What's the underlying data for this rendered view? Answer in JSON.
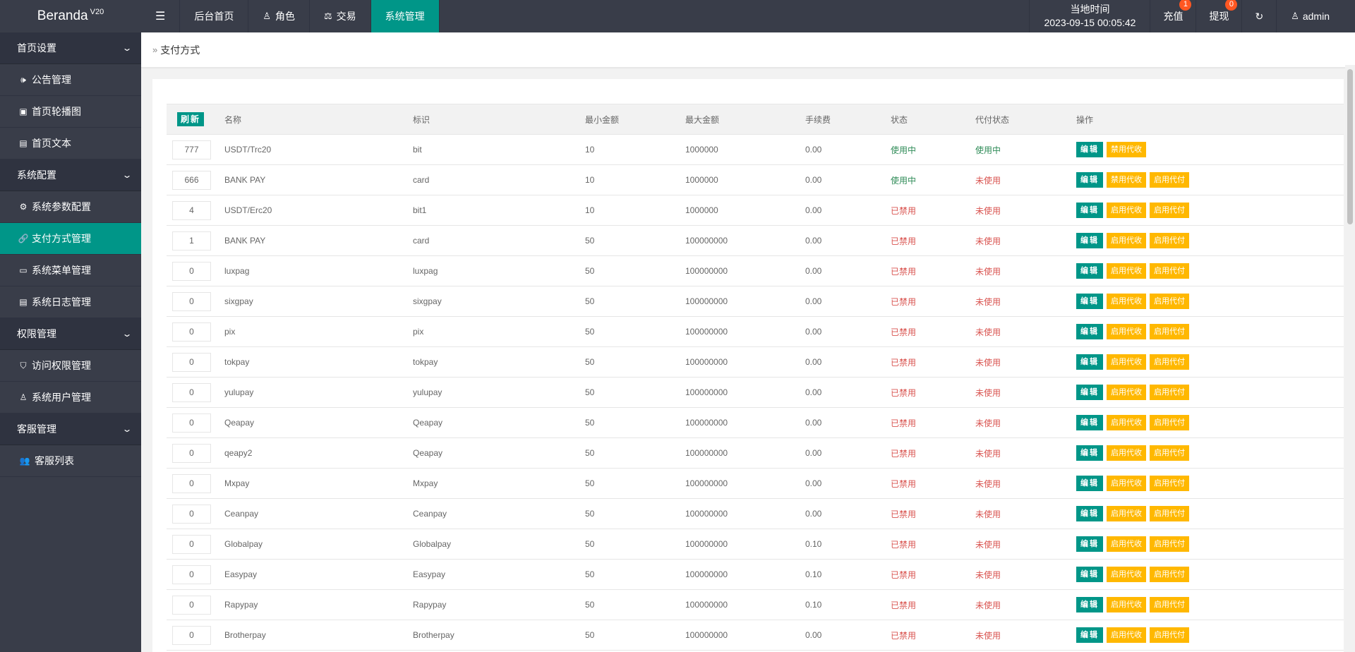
{
  "app": {
    "logo": "Beranda",
    "version": "V20"
  },
  "topnav": {
    "menu_icon": "hamburger-icon",
    "items": [
      {
        "label": "后台首页",
        "icon": ""
      },
      {
        "label": "角色",
        "icon": "user-icon"
      },
      {
        "label": "交易",
        "icon": "scale-icon"
      },
      {
        "label": "系统管理",
        "icon": "",
        "active": true
      }
    ]
  },
  "topright": {
    "time_label": "当地时间",
    "time_value": "2023-09-15 00:05:42",
    "recharge": {
      "label": "充值",
      "badge": "1"
    },
    "withdraw": {
      "label": "提现",
      "badge": "0"
    },
    "refresh_icon": "refresh-icon",
    "user": "admin"
  },
  "sidebar": {
    "groups": [
      {
        "title": "首页设置",
        "items": [
          {
            "label": "公告管理",
            "icon": "speaker-icon"
          },
          {
            "label": "首页轮播图",
            "icon": "image-icon"
          },
          {
            "label": "首页文本",
            "icon": "document-icon"
          }
        ]
      },
      {
        "title": "系统配置",
        "items": [
          {
            "label": "系统参数配置",
            "icon": "gear-icon"
          },
          {
            "label": "支付方式管理",
            "icon": "link-icon",
            "active": true
          },
          {
            "label": "系统菜单管理",
            "icon": "window-icon"
          },
          {
            "label": "系统日志管理",
            "icon": "log-icon"
          }
        ]
      },
      {
        "title": "权限管理",
        "items": [
          {
            "label": "访问权限管理",
            "icon": "shield-icon"
          },
          {
            "label": "系统用户管理",
            "icon": "user-icon"
          }
        ]
      },
      {
        "title": "客服管理",
        "items": [
          {
            "label": "客服列表",
            "icon": "users-icon"
          }
        ]
      }
    ]
  },
  "breadcrumb": "支付方式",
  "table": {
    "refresh_label": "刷新",
    "headers": [
      "名称",
      "标识",
      "最小金额",
      "最大金额",
      "手续费",
      "状态",
      "代付状态",
      "操作"
    ],
    "edit_label": "编辑",
    "rows": [
      {
        "sort": "777",
        "name": "USDT/Trc20",
        "code": "bit",
        "min": "10",
        "max": "1000000",
        "fee": "0.00",
        "status": "使用中",
        "status_on": true,
        "pay_status": "使用中",
        "pay_on": true,
        "actions": [
          "禁用代收"
        ]
      },
      {
        "sort": "666",
        "name": "BANK PAY",
        "code": "card",
        "min": "10",
        "max": "1000000",
        "fee": "0.00",
        "status": "使用中",
        "status_on": true,
        "pay_status": "未使用",
        "pay_on": false,
        "actions": [
          "禁用代收",
          "启用代付"
        ]
      },
      {
        "sort": "4",
        "name": "USDT/Erc20",
        "code": "bit1",
        "min": "10",
        "max": "1000000",
        "fee": "0.00",
        "status": "已禁用",
        "status_on": false,
        "pay_status": "未使用",
        "pay_on": false,
        "actions": [
          "启用代收",
          "启用代付"
        ]
      },
      {
        "sort": "1",
        "name": "BANK PAY",
        "code": "card",
        "min": "50",
        "max": "100000000",
        "fee": "0.00",
        "status": "已禁用",
        "status_on": false,
        "pay_status": "未使用",
        "pay_on": false,
        "actions": [
          "启用代收",
          "启用代付"
        ]
      },
      {
        "sort": "0",
        "name": "luxpag",
        "code": "luxpag",
        "min": "50",
        "max": "100000000",
        "fee": "0.00",
        "status": "已禁用",
        "status_on": false,
        "pay_status": "未使用",
        "pay_on": false,
        "actions": [
          "启用代收",
          "启用代付"
        ]
      },
      {
        "sort": "0",
        "name": "sixgpay",
        "code": "sixgpay",
        "min": "50",
        "max": "100000000",
        "fee": "0.00",
        "status": "已禁用",
        "status_on": false,
        "pay_status": "未使用",
        "pay_on": false,
        "actions": [
          "启用代收",
          "启用代付"
        ]
      },
      {
        "sort": "0",
        "name": "pix",
        "code": "pix",
        "min": "50",
        "max": "100000000",
        "fee": "0.00",
        "status": "已禁用",
        "status_on": false,
        "pay_status": "未使用",
        "pay_on": false,
        "actions": [
          "启用代收",
          "启用代付"
        ]
      },
      {
        "sort": "0",
        "name": "tokpay",
        "code": "tokpay",
        "min": "50",
        "max": "100000000",
        "fee": "0.00",
        "status": "已禁用",
        "status_on": false,
        "pay_status": "未使用",
        "pay_on": false,
        "actions": [
          "启用代收",
          "启用代付"
        ]
      },
      {
        "sort": "0",
        "name": "yulupay",
        "code": "yulupay",
        "min": "50",
        "max": "100000000",
        "fee": "0.00",
        "status": "已禁用",
        "status_on": false,
        "pay_status": "未使用",
        "pay_on": false,
        "actions": [
          "启用代收",
          "启用代付"
        ]
      },
      {
        "sort": "0",
        "name": "Qeapay",
        "code": "Qeapay",
        "min": "50",
        "max": "100000000",
        "fee": "0.00",
        "status": "已禁用",
        "status_on": false,
        "pay_status": "未使用",
        "pay_on": false,
        "actions": [
          "启用代收",
          "启用代付"
        ]
      },
      {
        "sort": "0",
        "name": "qeapy2",
        "code": "Qeapay",
        "min": "50",
        "max": "100000000",
        "fee": "0.00",
        "status": "已禁用",
        "status_on": false,
        "pay_status": "未使用",
        "pay_on": false,
        "actions": [
          "启用代收",
          "启用代付"
        ]
      },
      {
        "sort": "0",
        "name": "Mxpay",
        "code": "Mxpay",
        "min": "50",
        "max": "100000000",
        "fee": "0.00",
        "status": "已禁用",
        "status_on": false,
        "pay_status": "未使用",
        "pay_on": false,
        "actions": [
          "启用代收",
          "启用代付"
        ]
      },
      {
        "sort": "0",
        "name": "Ceanpay",
        "code": "Ceanpay",
        "min": "50",
        "max": "100000000",
        "fee": "0.00",
        "status": "已禁用",
        "status_on": false,
        "pay_status": "未使用",
        "pay_on": false,
        "actions": [
          "启用代收",
          "启用代付"
        ]
      },
      {
        "sort": "0",
        "name": "Globalpay",
        "code": "Globalpay",
        "min": "50",
        "max": "100000000",
        "fee": "0.10",
        "status": "已禁用",
        "status_on": false,
        "pay_status": "未使用",
        "pay_on": false,
        "actions": [
          "启用代收",
          "启用代付"
        ]
      },
      {
        "sort": "0",
        "name": "Easypay",
        "code": "Easypay",
        "min": "50",
        "max": "100000000",
        "fee": "0.10",
        "status": "已禁用",
        "status_on": false,
        "pay_status": "未使用",
        "pay_on": false,
        "actions": [
          "启用代收",
          "启用代付"
        ]
      },
      {
        "sort": "0",
        "name": "Rapypay",
        "code": "Rapypay",
        "min": "50",
        "max": "100000000",
        "fee": "0.10",
        "status": "已禁用",
        "status_on": false,
        "pay_status": "未使用",
        "pay_on": false,
        "actions": [
          "启用代收",
          "启用代付"
        ]
      },
      {
        "sort": "0",
        "name": "Brotherpay",
        "code": "Brotherpay",
        "min": "50",
        "max": "100000000",
        "fee": "0.00",
        "status": "已禁用",
        "status_on": false,
        "pay_status": "未使用",
        "pay_on": false,
        "actions": [
          "启用代收",
          "启用代付"
        ]
      }
    ]
  },
  "colors": {
    "accent": "#009688",
    "warn": "#ffb800",
    "on": "#2e8b57",
    "off": "#d9534f",
    "dark": "#393d49"
  }
}
